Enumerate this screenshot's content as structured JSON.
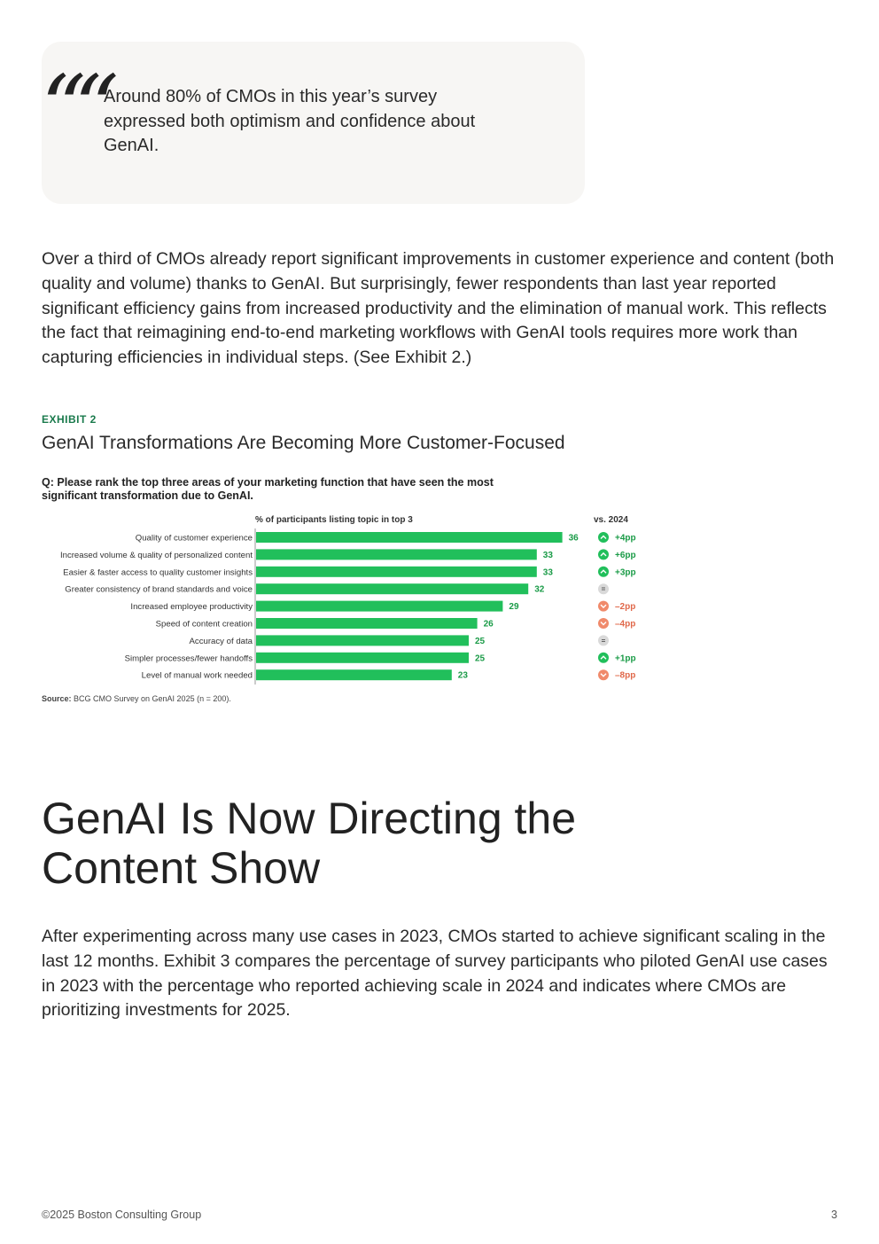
{
  "quote": {
    "mark": "““",
    "text": "Around 80% of CMOs in this year’s survey expressed both optimism and confidence about GenAI."
  },
  "intro_paragraph": "Over a third of CMOs already report significant improvements in customer experience and content (both quality and volume) thanks to GenAI. But surprisingly, fewer respondents than last year reported significant efficiency gains from increased productivity and the elimination of manual work. This reflects the fact that reimagining end-to-end marketing workflows with GenAI tools requires more work than capturing efficiencies in individual steps. (See Exhibit 2.)",
  "exhibit": {
    "label": "EXHIBIT 2",
    "title": "GenAI Transformations Are Becoming More Customer-Focused",
    "question": "Q: Please rank the top three areas of your marketing function that have seen the most significant transformation due to GenAI.",
    "source_label": "Source:",
    "source_text": " BCG CMO Survey on GenAI 2025 (n = 200)."
  },
  "chart_data": {
    "type": "bar",
    "orientation": "horizontal",
    "xlabel": "% of participants listing topic in top 3",
    "change_header": "vs. 2024",
    "categories": [
      "Quality of customer experience",
      "Increased volume & quality of personalized content",
      "Easier & faster access to quality customer insights",
      "Greater consistency of brand standards and voice",
      "Increased employee productivity",
      "Speed of content creation",
      "Accuracy of data",
      "Simpler processes/fewer handoffs",
      "Level of manual work needed"
    ],
    "values": [
      36,
      33,
      33,
      32,
      29,
      26,
      25,
      25,
      23
    ],
    "changes": [
      "+4pp",
      "+6pp",
      "+3pp",
      "=",
      "–2pp",
      "–4pp",
      "=",
      "+1pp",
      "–8pp"
    ],
    "change_direction": [
      "up",
      "up",
      "up",
      "flat",
      "down",
      "down",
      "flat",
      "up",
      "down"
    ],
    "colors": {
      "bar": "#21bf5b",
      "value_text": "#1a9b47",
      "up": "#21bf5b",
      "down": "#f08a6b",
      "flat": "#d9d9d9"
    }
  },
  "section_heading": "GenAI Is Now Directing the Content Show",
  "closing_paragraph": "After experimenting across many use cases in 2023, CMOs started to achieve significant scaling in the last 12 months. Exhibit 3 compares the percentage of survey participants who piloted GenAI use cases in 2023 with the percentage who reported achieving scale in 2024 and indicates where CMOs are prioritizing investments for 2025.",
  "footer": {
    "copyright": "©2025 Boston Consulting Group",
    "page_number": "3"
  }
}
